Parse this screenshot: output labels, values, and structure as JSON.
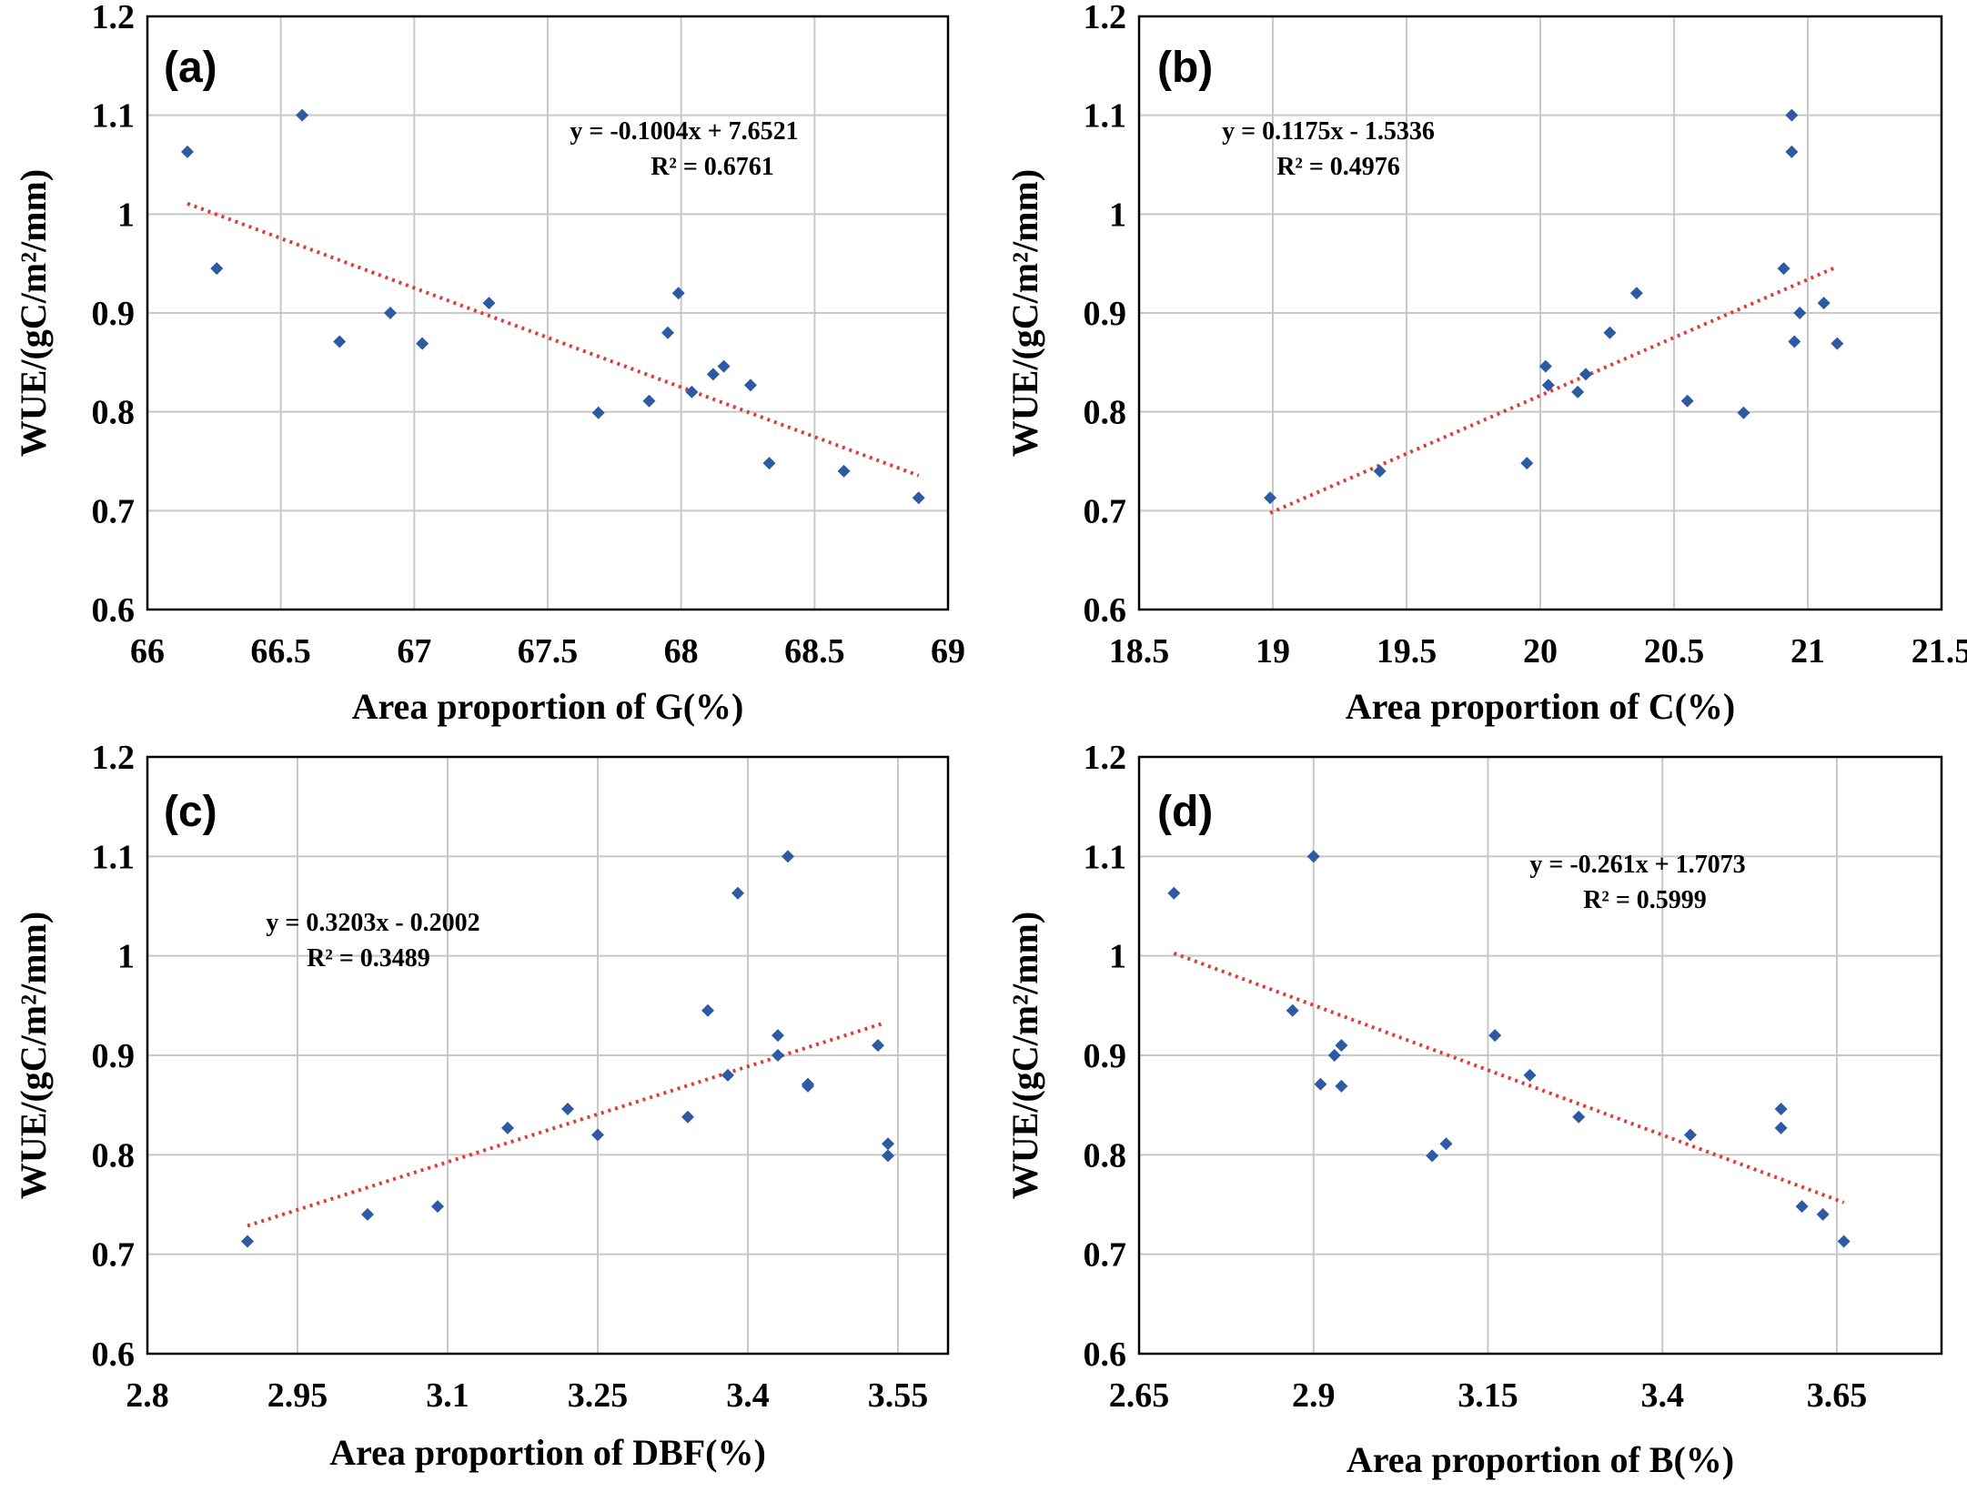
{
  "chart_data": [
    {
      "type": "scatter",
      "panel_label": "(a)",
      "xlabel": "Area proportion of G(%)",
      "ylabel": "WUE/(gC/m²/mm)",
      "xlim": [
        66,
        69
      ],
      "ylim": [
        0.6,
        1.2
      ],
      "xticks": [
        66,
        66.5,
        67,
        67.5,
        68,
        68.5,
        69
      ],
      "yticks": [
        0.6,
        0.7,
        0.8,
        0.9,
        1,
        1.1,
        1.2
      ],
      "grid": true,
      "points": {
        "x": [
          66.15,
          66.26,
          66.58,
          66.72,
          66.91,
          67.03,
          67.28,
          67.69,
          67.88,
          67.95,
          67.99,
          68.04,
          68.12,
          68.16,
          68.26,
          68.33,
          68.61,
          68.89
        ],
        "y": [
          1.063,
          0.945,
          1.1,
          0.871,
          0.9,
          0.869,
          0.91,
          0.799,
          0.811,
          0.88,
          0.92,
          0.82,
          0.838,
          0.846,
          0.827,
          0.748,
          0.74,
          0.713
        ]
      },
      "trendline": {
        "slope": -0.1004,
        "intercept": 7.6521,
        "x_range": [
          66.15,
          68.89
        ]
      },
      "equation": "y = -0.1004x + 7.6521",
      "r2": "R² = 0.6761"
    },
    {
      "type": "scatter",
      "panel_label": "(b)",
      "xlabel": "Area proportion of C(%)",
      "ylabel": "WUE/(gC/m²/mm)",
      "xlim": [
        18.5,
        21.5
      ],
      "ylim": [
        0.6,
        1.2
      ],
      "xticks": [
        18.5,
        19,
        19.5,
        20,
        20.5,
        21,
        21.5
      ],
      "yticks": [
        0.6,
        0.7,
        0.8,
        0.9,
        1,
        1.1,
        1.2
      ],
      "grid": true,
      "points": {
        "x": [
          18.99,
          19.4,
          19.95,
          20.02,
          20.03,
          20.14,
          20.17,
          20.26,
          20.36,
          20.55,
          20.76,
          20.91,
          20.94,
          20.94,
          20.95,
          20.97,
          21.06,
          21.11
        ],
        "y": [
          0.713,
          0.74,
          0.748,
          0.846,
          0.827,
          0.82,
          0.838,
          0.88,
          0.92,
          0.811,
          0.799,
          0.945,
          1.1,
          1.063,
          0.871,
          0.9,
          0.91,
          0.869
        ]
      },
      "trendline": {
        "slope": 0.1175,
        "intercept": -1.5336,
        "x_range": [
          18.99,
          21.11
        ]
      },
      "equation": "y = 0.1175x - 1.5336",
      "r2": "R² = 0.4976"
    },
    {
      "type": "scatter",
      "panel_label": "(c)",
      "xlabel": "Area proportion of DBF(%)",
      "ylabel": "WUE/(gC/m²/mm)",
      "xlim": [
        2.8,
        3.6
      ],
      "ylim": [
        0.6,
        1.2
      ],
      "xticks": [
        2.8,
        2.95,
        3.1,
        3.25,
        3.4,
        3.55
      ],
      "yticks": [
        0.6,
        0.7,
        0.8,
        0.9,
        1,
        1.1,
        1.2
      ],
      "grid": true,
      "points": {
        "x": [
          2.9,
          3.02,
          3.09,
          3.16,
          3.22,
          3.25,
          3.34,
          3.36,
          3.38,
          3.39,
          3.43,
          3.43,
          3.44,
          3.46,
          3.46,
          3.53,
          3.54,
          3.54
        ],
        "y": [
          0.713,
          0.74,
          0.748,
          0.827,
          0.846,
          0.82,
          0.838,
          0.945,
          0.88,
          1.063,
          0.92,
          0.9,
          1.1,
          0.871,
          0.869,
          0.91,
          0.811,
          0.799
        ]
      },
      "trendline": {
        "slope": 0.3203,
        "intercept": -0.2002,
        "x_range": [
          2.9,
          3.535
        ]
      },
      "equation": "y = 0.3203x - 0.2002",
      "r2": "R² = 0.3489"
    },
    {
      "type": "scatter",
      "panel_label": "(d)",
      "xlabel": "Area proportion of B(%)",
      "ylabel": "WUE/(gC/m²/mm)",
      "xlim": [
        2.65,
        3.8
      ],
      "ylim": [
        0.6,
        1.2
      ],
      "xticks": [
        2.65,
        2.9,
        3.15,
        3.4,
        3.65
      ],
      "yticks": [
        0.6,
        0.7,
        0.8,
        0.9,
        1,
        1.1,
        1.2
      ],
      "grid": true,
      "points": {
        "x": [
          2.7,
          2.87,
          2.9,
          2.91,
          2.93,
          2.94,
          2.94,
          3.07,
          3.09,
          3.16,
          3.21,
          3.28,
          3.44,
          3.57,
          3.57,
          3.6,
          3.63,
          3.66
        ],
        "y": [
          1.063,
          0.945,
          1.1,
          0.871,
          0.9,
          0.91,
          0.869,
          0.799,
          0.811,
          0.92,
          0.88,
          0.838,
          0.82,
          0.846,
          0.827,
          0.748,
          0.74,
          0.713
        ]
      },
      "trendline": {
        "slope": -0.261,
        "intercept": 1.7073,
        "x_range": [
          2.7,
          3.66
        ]
      },
      "equation": "y = -0.261x + 1.7073",
      "r2": "R² = 0.5999"
    }
  ]
}
